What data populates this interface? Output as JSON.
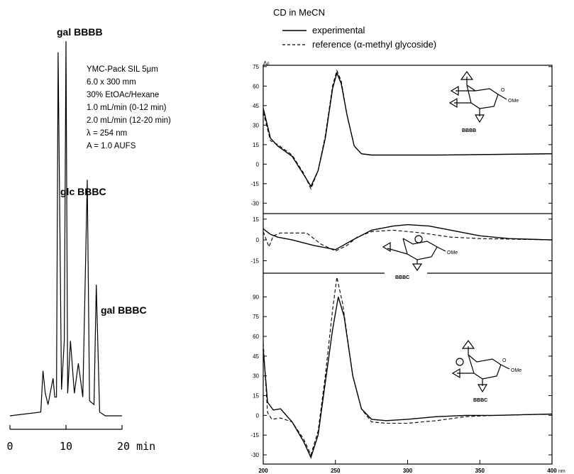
{
  "chart_data": [
    {
      "type": "line",
      "title": "",
      "xlabel": "",
      "ylabel": "",
      "xlim": [
        0,
        20
      ],
      "x_ticks": [
        "0",
        "10",
        "20 min"
      ],
      "annotations": [
        {
          "label": "gal BBBB",
          "x": 10.0
        },
        {
          "label": "glc BBBC",
          "x": 13.8
        },
        {
          "label": "gal BBBC",
          "x": 15.4
        }
      ],
      "conditions": [
        "YMC-Pack SIL 5μm",
        "6.0 x 300 mm",
        "30% EtOAc/Hexane",
        "1.0 mL/min (0-12 min)",
        "2.0 mL/min (12-20 min)",
        "λ = 254 nm",
        "A = 1.0 AUFS"
      ],
      "series": [
        {
          "x": [
            0,
            5.5,
            5.9,
            6.3,
            6.8,
            7.3,
            7.7,
            8.0,
            8.3,
            8.6,
            9.2,
            9.7,
            10.0,
            10.3,
            10.8,
            11.5,
            12.2,
            13.0,
            13.8,
            14.2,
            15.0,
            15.4,
            16.0,
            17,
            20
          ],
          "y": [
            0,
            1,
            12,
            6,
            3,
            7,
            10,
            5,
            5,
            97,
            7,
            20,
            100,
            6,
            20,
            6,
            14,
            5,
            63,
            4,
            3,
            35,
            1,
            0,
            0
          ]
        }
      ]
    },
    {
      "type": "line",
      "title": "CD in MeCN",
      "xlabel": "",
      "xunit": "nm",
      "ylabel": "Δε",
      "legend": [
        "experimental",
        "reference (α-methyl glycoside)"
      ],
      "panels": [
        {
          "label": "BBBB",
          "ylim": [
            -38,
            76
          ],
          "yticks": [
            "75",
            "60",
            "45",
            "30",
            "15",
            "0",
            "-15",
            "-30"
          ],
          "series": [
            {
              "name": "experimental",
              "x": [
                200,
                205,
                210,
                220,
                228,
                233,
                238,
                243,
                248,
                251,
                254,
                258,
                263,
                268,
                275,
                290,
                320,
                400
              ],
              "y": [
                43,
                20,
                14,
                6,
                -8,
                -17,
                -5,
                20,
                58,
                70,
                62,
                38,
                14,
                8,
                7,
                7,
                7,
                8
              ]
            },
            {
              "name": "reference (α-methyl glycoside)",
              "x": [
                200,
                205,
                210,
                220,
                228,
                233,
                238,
                243,
                248,
                251,
                254,
                258,
                263,
                268,
                275,
                290,
                320,
                400
              ],
              "y": [
                40,
                18,
                15,
                7,
                -7,
                -19,
                -5,
                22,
                60,
                72,
                64,
                38,
                14,
                8,
                7,
                7,
                7,
                8
              ]
            }
          ]
        },
        {
          "label": "BBBC",
          "ylim": [
            -24,
            19
          ],
          "yticks": [
            "15",
            "0",
            "-15"
          ],
          "series": [
            {
              "name": "experimental",
              "x": [
                200,
                205,
                210,
                220,
                235,
                250,
                262,
                275,
                290,
                300,
                315,
                330,
                350,
                370,
                400
              ],
              "y": [
                8,
                4,
                2,
                0,
                -4,
                -7,
                0,
                7,
                10,
                11,
                10,
                7,
                3,
                1,
                0
              ]
            },
            {
              "name": "reference (α-methyl glycoside)",
              "x": [
                200,
                204,
                207,
                212,
                230,
                240,
                250,
                258,
                265,
                275,
                290,
                310,
                330,
                350,
                400
              ],
              "y": [
                6,
                -5,
                3,
                5,
                5,
                -3,
                -8,
                -4,
                2,
                6,
                7,
                5,
                2,
                1,
                0
              ]
            }
          ]
        },
        {
          "label": "BBBC",
          "ylim": [
            -37,
            108
          ],
          "yticks": [
            "90",
            "75",
            "60",
            "45",
            "30",
            "15",
            "0",
            "-15",
            "-30"
          ],
          "series": [
            {
              "name": "experimental",
              "x": [
                200,
                203,
                207,
                212,
                220,
                228,
                233,
                238,
                243,
                248,
                252,
                256,
                262,
                268,
                275,
                285,
                300,
                320,
                340,
                360,
                400
              ],
              "y": [
                50,
                10,
                4,
                5,
                -5,
                -20,
                -32,
                -15,
                25,
                65,
                90,
                75,
                30,
                5,
                -3,
                -4,
                -3,
                -1,
                0,
                0,
                1
              ]
            },
            {
              "name": "reference (α-methyl glycoside)",
              "x": [
                200,
                203,
                206,
                212,
                220,
                228,
                233,
                238,
                243,
                248,
                251,
                255,
                262,
                268,
                275,
                285,
                300,
                320,
                340,
                360,
                400
              ],
              "y": [
                55,
                2,
                -3,
                -2,
                -5,
                -18,
                -30,
                -12,
                30,
                80,
                105,
                85,
                30,
                5,
                -5,
                -6,
                -6,
                -4,
                -1,
                0,
                1
              ]
            }
          ]
        }
      ],
      "xlim": [
        200,
        400
      ],
      "xticks": [
        "200",
        "250",
        "300",
        "350",
        "400"
      ]
    }
  ]
}
